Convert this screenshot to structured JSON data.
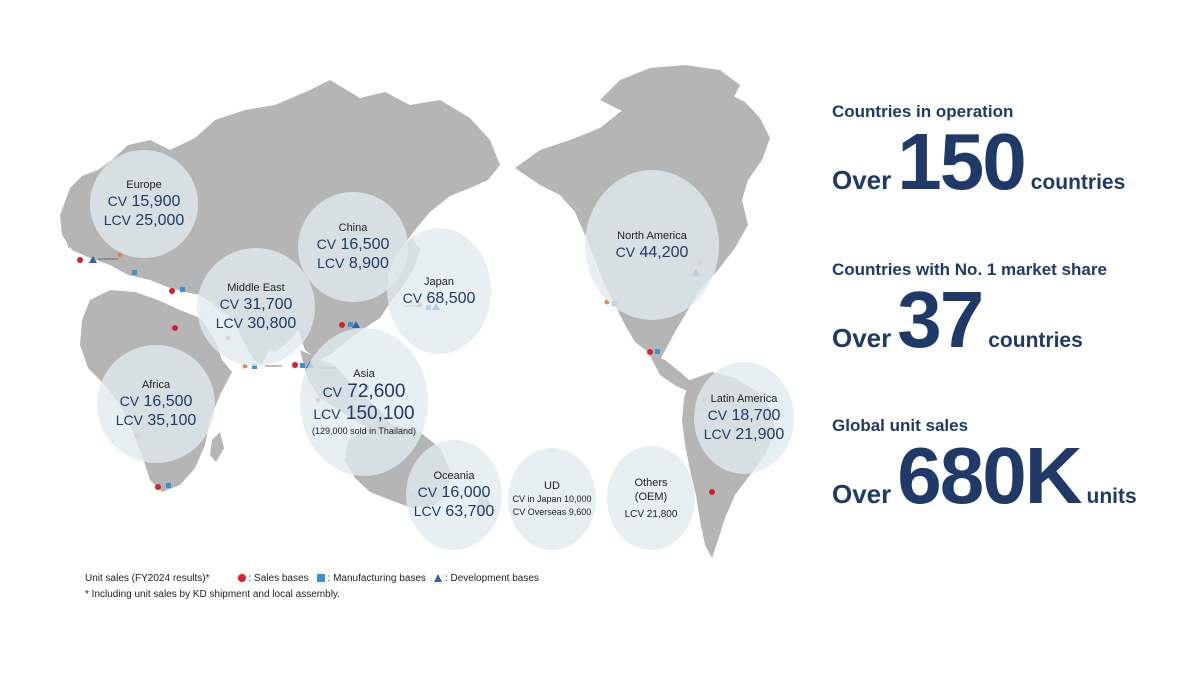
{
  "regions": [
    {
      "id": "europe",
      "name": "Europe",
      "lines": [
        {
          "prefix": "CV",
          "value": "15,900"
        },
        {
          "prefix": "LCV",
          "value": "25,000"
        }
      ]
    },
    {
      "id": "china",
      "name": "China",
      "lines": [
        {
          "prefix": "CV",
          "value": "16,500"
        },
        {
          "prefix": "LCV",
          "value": "8,900"
        }
      ]
    },
    {
      "id": "middle-east",
      "name": "Middle East",
      "lines": [
        {
          "prefix": "CV",
          "value": "31,700"
        },
        {
          "prefix": "LCV",
          "value": "30,800"
        }
      ]
    },
    {
      "id": "japan",
      "name": "Japan",
      "lines": [
        {
          "prefix": "CV",
          "value": "68,500"
        }
      ]
    },
    {
      "id": "asia",
      "name": "Asia",
      "lines": [
        {
          "prefix": "CV",
          "value": "72,600"
        },
        {
          "prefix": "LCV",
          "value": "150,100"
        }
      ],
      "note": "(129,000 sold in Thailand)"
    },
    {
      "id": "africa",
      "name": "Africa",
      "lines": [
        {
          "prefix": "CV",
          "value": "16,500"
        },
        {
          "prefix": "LCV",
          "value": "35,100"
        }
      ]
    },
    {
      "id": "oceania",
      "name": "Oceania",
      "lines": [
        {
          "prefix": "CV",
          "value": "16,000"
        },
        {
          "prefix": "LCV",
          "value": "63,700"
        }
      ]
    },
    {
      "id": "north-america",
      "name": "North America",
      "lines": [
        {
          "prefix": "CV",
          "value": "44,200"
        }
      ]
    },
    {
      "id": "latin-america",
      "name": "Latin America",
      "lines": [
        {
          "prefix": "CV",
          "value": "18,700"
        },
        {
          "prefix": "LCV",
          "value": "21,900"
        }
      ]
    }
  ],
  "ud": {
    "name": "UD",
    "line1": "CV in Japan 10,000",
    "line2": "CV Overseas 9,600"
  },
  "others": {
    "name1": "Others",
    "name2": "(OEM)",
    "line": "LCV 21,800"
  },
  "stats": [
    {
      "label": "Countries in operation",
      "prefix": "Over",
      "number": "150",
      "suffix": "countries"
    },
    {
      "label": "Countries with No. 1 market share",
      "prefix": "Over",
      "number": "37",
      "suffix": "countries"
    },
    {
      "label": "Global unit sales",
      "prefix": "Over",
      "number": "680K",
      "suffix": "units"
    }
  ],
  "legend": {
    "unit_sales": "Unit sales (FY2024 results)*",
    "sales": ": Sales bases",
    "manufacturing": ": Manufacturing bases",
    "development": ": Development bases",
    "footnote": "* Including unit sales by KD shipment and local assembly."
  },
  "colors": {
    "land": "#b5b5b5",
    "bubble": "#e0eaf0",
    "text": "#1f3a68",
    "sales": "#d6202a",
    "manufacturing": "#3a93d0",
    "development": "#2f63a5",
    "sales_minor": "#e0855a"
  }
}
